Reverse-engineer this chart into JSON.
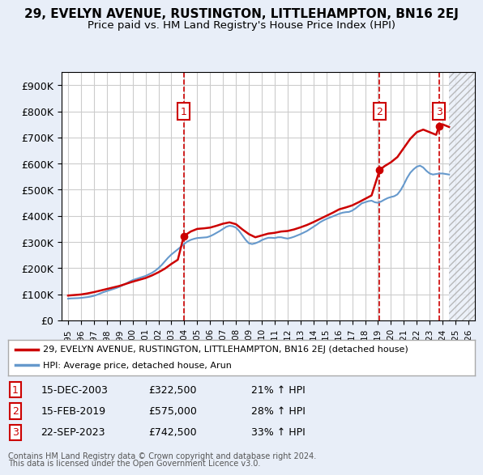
{
  "title": "29, EVELYN AVENUE, RUSTINGTON, LITTLEHAMPTON, BN16 2EJ",
  "subtitle": "Price paid vs. HM Land Registry's House Price Index (HPI)",
  "legend_line1": "29, EVELYN AVENUE, RUSTINGTON, LITTLEHAMPTON, BN16 2EJ (detached house)",
  "legend_line2": "HPI: Average price, detached house, Arun",
  "footer1": "Contains HM Land Registry data © Crown copyright and database right 2024.",
  "footer2": "This data is licensed under the Open Government Licence v3.0.",
  "transactions": [
    {
      "num": 1,
      "date": "15-DEC-2003",
      "price": 322500,
      "pct": "21%",
      "dir": "↑",
      "year": 2003.96
    },
    {
      "num": 2,
      "date": "15-FEB-2019",
      "price": 575000,
      "pct": "28%",
      "dir": "↑",
      "year": 2019.12
    },
    {
      "num": 3,
      "date": "22-SEP-2023",
      "price": 742500,
      "pct": "33%",
      "dir": "↑",
      "year": 2023.72
    }
  ],
  "hpi_color": "#6699cc",
  "property_color": "#cc0000",
  "dashed_vline_color": "#cc0000",
  "grid_color": "#cccccc",
  "bg_color": "#e8eef8",
  "plot_bg": "#ffffff",
  "ylim": [
    0,
    950000
  ],
  "yticks": [
    0,
    100000,
    200000,
    300000,
    400000,
    500000,
    600000,
    700000,
    800000,
    900000
  ],
  "xlim": [
    1994.5,
    2026.5
  ],
  "xticks": [
    1995,
    1996,
    1997,
    1998,
    1999,
    2000,
    2001,
    2002,
    2003,
    2004,
    2005,
    2006,
    2007,
    2008,
    2009,
    2010,
    2011,
    2012,
    2013,
    2014,
    2015,
    2016,
    2017,
    2018,
    2019,
    2020,
    2021,
    2022,
    2023,
    2024,
    2025,
    2026
  ],
  "hpi_years": [
    1995.0,
    1995.25,
    1995.5,
    1995.75,
    1996.0,
    1996.25,
    1996.5,
    1996.75,
    1997.0,
    1997.25,
    1997.5,
    1997.75,
    1998.0,
    1998.25,
    1998.5,
    1998.75,
    1999.0,
    1999.25,
    1999.5,
    1999.75,
    2000.0,
    2000.25,
    2000.5,
    2000.75,
    2001.0,
    2001.25,
    2001.5,
    2001.75,
    2002.0,
    2002.25,
    2002.5,
    2002.75,
    2003.0,
    2003.25,
    2003.5,
    2003.75,
    2004.0,
    2004.25,
    2004.5,
    2004.75,
    2005.0,
    2005.25,
    2005.5,
    2005.75,
    2006.0,
    2006.25,
    2006.5,
    2006.75,
    2007.0,
    2007.25,
    2007.5,
    2007.75,
    2008.0,
    2008.25,
    2008.5,
    2008.75,
    2009.0,
    2009.25,
    2009.5,
    2009.75,
    2010.0,
    2010.25,
    2010.5,
    2010.75,
    2011.0,
    2011.25,
    2011.5,
    2011.75,
    2012.0,
    2012.25,
    2012.5,
    2012.75,
    2013.0,
    2013.25,
    2013.5,
    2013.75,
    2014.0,
    2014.25,
    2014.5,
    2014.75,
    2015.0,
    2015.25,
    2015.5,
    2015.75,
    2016.0,
    2016.25,
    2016.5,
    2016.75,
    2017.0,
    2017.25,
    2017.5,
    2017.75,
    2018.0,
    2018.25,
    2018.5,
    2018.75,
    2019.0,
    2019.25,
    2019.5,
    2019.75,
    2020.0,
    2020.25,
    2020.5,
    2020.75,
    2021.0,
    2021.25,
    2021.5,
    2021.75,
    2022.0,
    2022.25,
    2022.5,
    2022.75,
    2023.0,
    2023.25,
    2023.5,
    2023.75,
    2024.0,
    2024.25,
    2024.5
  ],
  "hpi_values": [
    83000,
    84000,
    84500,
    85000,
    86000,
    87500,
    89000,
    91000,
    94000,
    98000,
    103000,
    108000,
    112000,
    116000,
    120000,
    124000,
    129000,
    135000,
    141000,
    148000,
    154000,
    158000,
    162000,
    166000,
    170000,
    176000,
    182000,
    190000,
    200000,
    212000,
    226000,
    240000,
    252000,
    262000,
    272000,
    282000,
    293000,
    302000,
    308000,
    312000,
    315000,
    316000,
    317000,
    318000,
    322000,
    328000,
    335000,
    342000,
    350000,
    358000,
    362000,
    360000,
    355000,
    342000,
    325000,
    308000,
    295000,
    292000,
    295000,
    300000,
    307000,
    312000,
    316000,
    316000,
    315000,
    318000,
    318000,
    315000,
    313000,
    316000,
    320000,
    325000,
    330000,
    336000,
    342000,
    350000,
    358000,
    366000,
    375000,
    382000,
    388000,
    393000,
    398000,
    403000,
    408000,
    412000,
    414000,
    415000,
    420000,
    428000,
    438000,
    448000,
    452000,
    456000,
    458000,
    452000,
    450000,
    455000,
    462000,
    468000,
    472000,
    475000,
    482000,
    498000,
    520000,
    545000,
    565000,
    578000,
    588000,
    592000,
    585000,
    572000,
    562000,
    558000,
    560000,
    562000,
    562000,
    560000,
    558000
  ],
  "prop_years": [
    1995.0,
    1995.5,
    1996.0,
    1996.5,
    1997.0,
    1997.5,
    1998.0,
    1998.5,
    1999.0,
    1999.5,
    2000.0,
    2000.5,
    2001.0,
    2001.5,
    2002.0,
    2002.5,
    2003.0,
    2003.5,
    2003.96,
    2004.5,
    2005.0,
    2005.5,
    2006.0,
    2006.5,
    2007.0,
    2007.5,
    2008.0,
    2008.5,
    2009.0,
    2009.5,
    2010.0,
    2010.5,
    2011.0,
    2011.5,
    2012.0,
    2012.5,
    2013.0,
    2013.5,
    2014.0,
    2014.5,
    2015.0,
    2015.5,
    2016.0,
    2016.5,
    2017.0,
    2017.5,
    2018.0,
    2018.5,
    2019.12,
    2019.5,
    2020.0,
    2020.5,
    2021.0,
    2021.5,
    2022.0,
    2022.5,
    2023.0,
    2023.5,
    2023.72,
    2024.0,
    2024.5
  ],
  "prop_values": [
    95000,
    97000,
    99000,
    103000,
    108000,
    114000,
    120000,
    126000,
    132000,
    140000,
    148000,
    155000,
    162000,
    172000,
    184000,
    198000,
    216000,
    232000,
    322500,
    340000,
    350000,
    352000,
    355000,
    362000,
    370000,
    375000,
    368000,
    348000,
    330000,
    318000,
    325000,
    332000,
    335000,
    340000,
    342000,
    348000,
    356000,
    365000,
    376000,
    388000,
    400000,
    412000,
    425000,
    432000,
    440000,
    452000,
    465000,
    478000,
    575000,
    590000,
    605000,
    625000,
    660000,
    695000,
    720000,
    730000,
    720000,
    710000,
    742500,
    750000,
    740000
  ]
}
